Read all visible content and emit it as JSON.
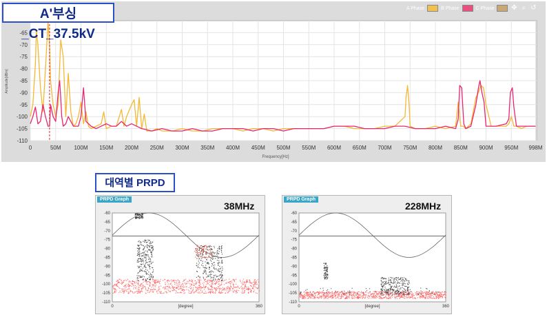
{
  "spectrum": {
    "title": "A'부싱_CT_37.5kV",
    "legend": [
      {
        "label": "A Phase",
        "color": "#f0c050"
      },
      {
        "label": "B Phase",
        "color": "#e8507f"
      },
      {
        "label": "C Phase",
        "color": "#c9a878"
      }
    ],
    "colors": {
      "a_phase": "#f5b732",
      "b_phase": "#e8246f",
      "marker": "#e0202a"
    },
    "icons": [
      "move-icon",
      "zoom-icon",
      "reset-icon"
    ]
  },
  "chart_data": [
    {
      "type": "line",
      "xlabel": "Frequency[Hz]",
      "ylabel": "Amplitude[dBm]",
      "xlim": [
        0,
        1000
      ],
      "ylim": [
        -110,
        -60
      ],
      "xticks": [
        "0",
        "50M",
        "100M",
        "150M",
        "200M",
        "250M",
        "300M",
        "350M",
        "400M",
        "450M",
        "500M",
        "550M",
        "600M",
        "650M",
        "700M",
        "750M",
        "800M",
        "850M",
        "900M",
        "950M",
        "998M"
      ],
      "yticks": [
        "-65",
        "-70",
        "-75",
        "-80",
        "-85",
        "-90",
        "-95",
        "-100",
        "-105",
        "-110"
      ],
      "marker_x": 38,
      "series": [
        {
          "name": "A Phase",
          "color": "#f5b732",
          "x": [
            0,
            5,
            10,
            12,
            15,
            20,
            25,
            30,
            35,
            38,
            40,
            45,
            50,
            55,
            60,
            65,
            68,
            70,
            75,
            80,
            85,
            90,
            95,
            100,
            105,
            110,
            115,
            120,
            130,
            140,
            145,
            150,
            160,
            170,
            180,
            185,
            190,
            200,
            205,
            210,
            215,
            220,
            225,
            230,
            240,
            250,
            260,
            280,
            300,
            320,
            340,
            360,
            380,
            400,
            420,
            440,
            460,
            480,
            500,
            520,
            540,
            560,
            580,
            600,
            620,
            640,
            660,
            680,
            700,
            720,
            740,
            742,
            745,
            748,
            750,
            760,
            780,
            800,
            820,
            840,
            845,
            850,
            855,
            860,
            870,
            880,
            885,
            890,
            895,
            900,
            910,
            920,
            940,
            945,
            950,
            955,
            960,
            970,
            980,
            990,
            998
          ],
          "y": [
            -100,
            -95,
            -78,
            -64,
            -70,
            -88,
            -98,
            -80,
            -60,
            -70,
            -85,
            -95,
            -100,
            -95,
            -68,
            -75,
            -90,
            -100,
            -82,
            -98,
            -104,
            -103,
            -100,
            -94,
            -103,
            -98,
            -104,
            -105,
            -104,
            -103,
            -98,
            -105,
            -104,
            -104,
            -97,
            -104,
            -100,
            -95,
            -93,
            -104,
            -92,
            -105,
            -99,
            -106,
            -106,
            -105,
            -106,
            -106,
            -105,
            -106,
            -106,
            -105,
            -105,
            -105,
            -106,
            -105,
            -105,
            -106,
            -105,
            -105,
            -105,
            -105,
            -105,
            -104,
            -104,
            -105,
            -105,
            -105,
            -104,
            -104,
            -100,
            -92,
            -87,
            -95,
            -104,
            -105,
            -105,
            -104,
            -105,
            -104,
            -94,
            -104,
            -104,
            -105,
            -103,
            -92,
            -90,
            -87,
            -88,
            -95,
            -104,
            -104,
            -104,
            -103,
            -100,
            -104,
            -104,
            -105,
            -104,
            -104,
            -104
          ]
        },
        {
          "name": "B Phase",
          "color": "#e8246f",
          "x": [
            0,
            5,
            10,
            15,
            20,
            25,
            30,
            35,
            38,
            40,
            45,
            50,
            55,
            58,
            60,
            62,
            65,
            70,
            75,
            80,
            85,
            90,
            95,
            100,
            105,
            110,
            115,
            120,
            130,
            140,
            150,
            160,
            170,
            180,
            190,
            200,
            210,
            220,
            240,
            260,
            280,
            300,
            320,
            340,
            360,
            380,
            400,
            420,
            440,
            460,
            480,
            500,
            520,
            540,
            560,
            580,
            600,
            620,
            640,
            660,
            680,
            700,
            720,
            740,
            760,
            780,
            800,
            820,
            840,
            845,
            848,
            852,
            856,
            860,
            870,
            880,
            885,
            888,
            892,
            896,
            900,
            910,
            920,
            940,
            945,
            948,
            952,
            955,
            960,
            970,
            980,
            990,
            998
          ],
          "y": [
            -103,
            -100,
            -96,
            -103,
            -102,
            -95,
            -100,
            -104,
            -104,
            -95,
            -100,
            -102,
            -90,
            -85,
            -92,
            -100,
            -104,
            -103,
            -100,
            -102,
            -104,
            -104,
            -104,
            -100,
            -88,
            -102,
            -103,
            -104,
            -105,
            -104,
            -103,
            -104,
            -104,
            -102,
            -104,
            -103,
            -104,
            -105,
            -106,
            -105,
            -106,
            -106,
            -105,
            -106,
            -106,
            -105,
            -105,
            -105,
            -106,
            -105,
            -105,
            -106,
            -105,
            -105,
            -105,
            -105,
            -104,
            -104,
            -104,
            -105,
            -105,
            -105,
            -104,
            -104,
            -105,
            -105,
            -105,
            -104,
            -105,
            -101,
            -87,
            -88,
            -103,
            -105,
            -104,
            -95,
            -88,
            -85,
            -90,
            -94,
            -104,
            -104,
            -104,
            -103,
            -101,
            -90,
            -88,
            -96,
            -104,
            -104,
            -104,
            -104,
            -104
          ]
        }
      ]
    },
    {
      "type": "scatter",
      "title": "38MHz",
      "xlabel": "[degree]",
      "xlim": [
        0,
        360
      ],
      "ylim": [
        -110,
        -60
      ],
      "yticks": [
        "-60",
        "-65",
        "-70",
        "-75",
        "-80",
        "-85",
        "-90",
        "-95",
        "-100",
        "-105",
        "-110"
      ],
      "reference_level": -73,
      "clusters": [
        {
          "x_range": [
            0,
            360
          ],
          "y_range": [
            -105,
            -97
          ],
          "density": "high",
          "color": "#ff5a5a"
        },
        {
          "x_range": [
            60,
            100
          ],
          "y_range": [
            -98,
            -75
          ],
          "density": "medium",
          "color": "#333333"
        },
        {
          "x_range": [
            205,
            270
          ],
          "y_range": [
            -98,
            -78
          ],
          "density": "medium",
          "color": "#333333"
        },
        {
          "x_range": [
            200,
            245
          ],
          "y_range": [
            -85,
            -78
          ],
          "density": "low",
          "color": "#e0402a"
        },
        {
          "x_range": [
            55,
            75
          ],
          "y_range": [
            -63,
            -60
          ],
          "density": "low",
          "color": "#333333"
        }
      ]
    },
    {
      "type": "scatter",
      "title": "228MHz",
      "xlabel": "[degree]",
      "xlim": [
        0,
        360
      ],
      "ylim": [
        -110,
        -60
      ],
      "yticks": [
        "-60",
        "-65",
        "-70",
        "-75",
        "-80",
        "-85",
        "-90",
        "-95",
        "-100",
        "-105",
        "-110"
      ],
      "reference_level": -73,
      "clusters": [
        {
          "x_range": [
            0,
            360
          ],
          "y_range": [
            -108,
            -104
          ],
          "density": "high",
          "color": "#ff5a5a"
        },
        {
          "x_range": [
            60,
            70
          ],
          "y_range": [
            -97,
            -88
          ],
          "density": "low",
          "color": "#333333"
        },
        {
          "x_range": [
            200,
            270
          ],
          "y_range": [
            -106,
            -96
          ],
          "density": "medium",
          "color": "#333333"
        },
        {
          "x_range": [
            0,
            360
          ],
          "y_range": [
            -106,
            -102
          ],
          "density": "low",
          "color": "#444444"
        }
      ]
    }
  ],
  "prpd": {
    "heading": "대역별 PRPD",
    "tab_label": "PRPD Graph",
    "panels": [
      {
        "freq_label": "38MHz"
      },
      {
        "freq_label": "228MHz"
      }
    ]
  }
}
